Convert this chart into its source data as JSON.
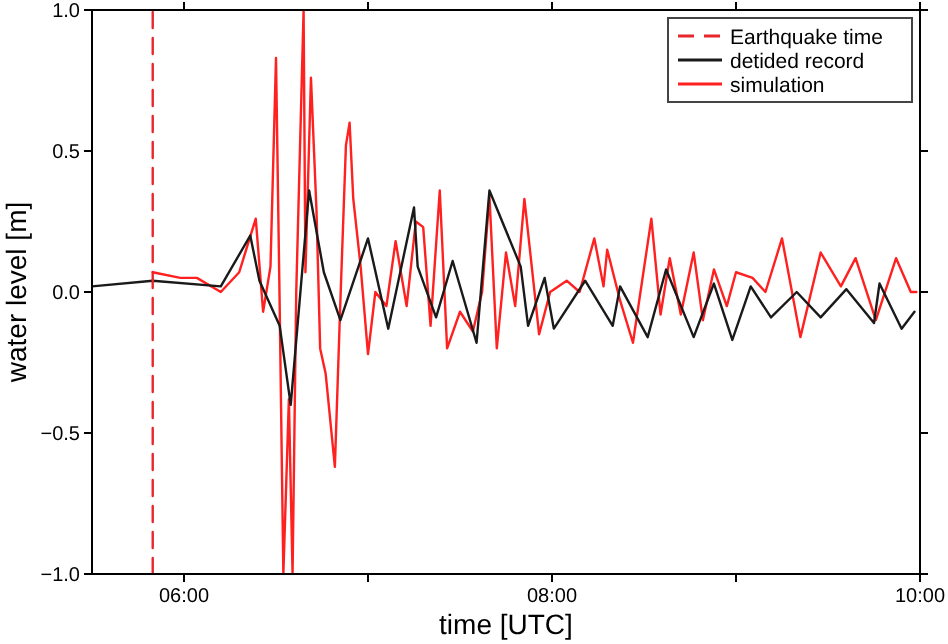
{
  "chart_data": {
    "type": "line",
    "xlabel": "time [UTC]",
    "ylabel": "water level [m]",
    "xlim": [
      5.5,
      10
    ],
    "xticks": [
      {
        "value": 6,
        "label": "06:00"
      },
      {
        "value": 7,
        "label": null
      },
      {
        "value": 8,
        "label": "08:00"
      },
      {
        "value": 9,
        "label": null
      },
      {
        "value": 10,
        "label": "10:00"
      }
    ],
    "ylim": [
      -1,
      1
    ],
    "yticks": [
      {
        "value": -1,
        "label": "−1.0"
      },
      {
        "value": -0.5,
        "label": "−0.5"
      },
      {
        "value": 0,
        "label": "0.0"
      },
      {
        "value": 0.5,
        "label": "0.5"
      },
      {
        "value": 1,
        "label": "1.0"
      }
    ],
    "grid": false,
    "legend": "top right",
    "series": [
      {
        "name": "Earthquake time",
        "color": "#e8262b",
        "line_style": "dashed",
        "x": [
          5.83,
          5.83
        ],
        "values": [
          -1,
          1
        ]
      },
      {
        "name": "detided record",
        "color": "#1a1a1a",
        "line_style": "solid",
        "x": [
          5.5,
          5.83,
          6.2,
          6.36,
          6.41,
          6.52,
          6.58,
          6.68,
          6.76,
          6.85,
          7.0,
          7.11,
          7.25,
          7.27,
          7.37,
          7.46,
          7.59,
          7.66,
          7.83,
          7.87,
          7.96,
          8.01,
          8.18,
          8.33,
          8.37,
          8.52,
          8.62,
          8.77,
          8.88,
          8.98,
          9.08,
          9.19,
          9.33,
          9.46,
          9.6,
          9.75,
          9.78,
          9.9,
          9.97
        ],
        "values": [
          0.02,
          0.04,
          0.02,
          0.2,
          0.04,
          -0.12,
          -0.4,
          0.36,
          0.07,
          -0.1,
          0.19,
          -0.13,
          0.3,
          0.09,
          -0.09,
          0.11,
          -0.18,
          0.36,
          0.09,
          -0.12,
          0.05,
          -0.13,
          0.04,
          -0.12,
          0.02,
          -0.16,
          0.08,
          -0.16,
          0.03,
          -0.17,
          0.02,
          -0.09,
          0.0,
          -0.09,
          0.01,
          -0.11,
          0.03,
          -0.13,
          -0.07
        ]
      },
      {
        "name": "simulation",
        "color": "#ff2020",
        "line_style": "solid",
        "x": [
          5.83,
          5.98,
          6.07,
          6.2,
          6.3,
          6.39,
          6.43,
          6.47,
          6.5,
          6.52,
          6.54,
          6.57,
          6.59,
          6.61,
          6.65,
          6.66,
          6.69,
          6.72,
          6.74,
          6.77,
          6.82,
          6.85,
          6.88,
          6.9,
          6.92,
          6.96,
          7.0,
          7.04,
          7.1,
          7.15,
          7.21,
          7.26,
          7.3,
          7.34,
          7.39,
          7.43,
          7.5,
          7.57,
          7.62,
          7.66,
          7.7,
          7.75,
          7.8,
          7.85,
          7.93,
          7.99,
          8.08,
          8.15,
          8.23,
          8.28,
          8.3,
          8.37,
          8.44,
          8.54,
          8.59,
          8.64,
          8.7,
          8.77,
          8.82,
          8.88,
          8.95,
          9.0,
          9.09,
          9.16,
          9.25,
          9.35,
          9.46,
          9.57,
          9.65,
          9.76,
          9.87,
          9.95,
          9.98
        ],
        "values": [
          0.07,
          0.05,
          0.05,
          0.0,
          0.07,
          0.26,
          -0.07,
          0.09,
          0.83,
          -0.05,
          -1.0,
          -0.38,
          -1.0,
          0.0,
          1.0,
          0.07,
          0.76,
          0.29,
          -0.2,
          -0.29,
          -0.62,
          -0.03,
          0.52,
          0.6,
          0.33,
          0.09,
          -0.22,
          0.0,
          -0.05,
          0.18,
          -0.05,
          0.25,
          0.23,
          -0.12,
          0.36,
          -0.2,
          -0.07,
          -0.14,
          0.0,
          0.34,
          -0.2,
          0.14,
          -0.05,
          0.33,
          -0.15,
          0.0,
          0.04,
          0.0,
          0.19,
          0.02,
          0.15,
          -0.03,
          -0.18,
          0.26,
          -0.08,
          0.12,
          -0.08,
          0.14,
          -0.1,
          0.08,
          -0.05,
          0.07,
          0.05,
          0.0,
          0.19,
          -0.16,
          0.14,
          0.02,
          0.12,
          -0.1,
          0.12,
          0.0,
          0.0
        ]
      }
    ]
  }
}
